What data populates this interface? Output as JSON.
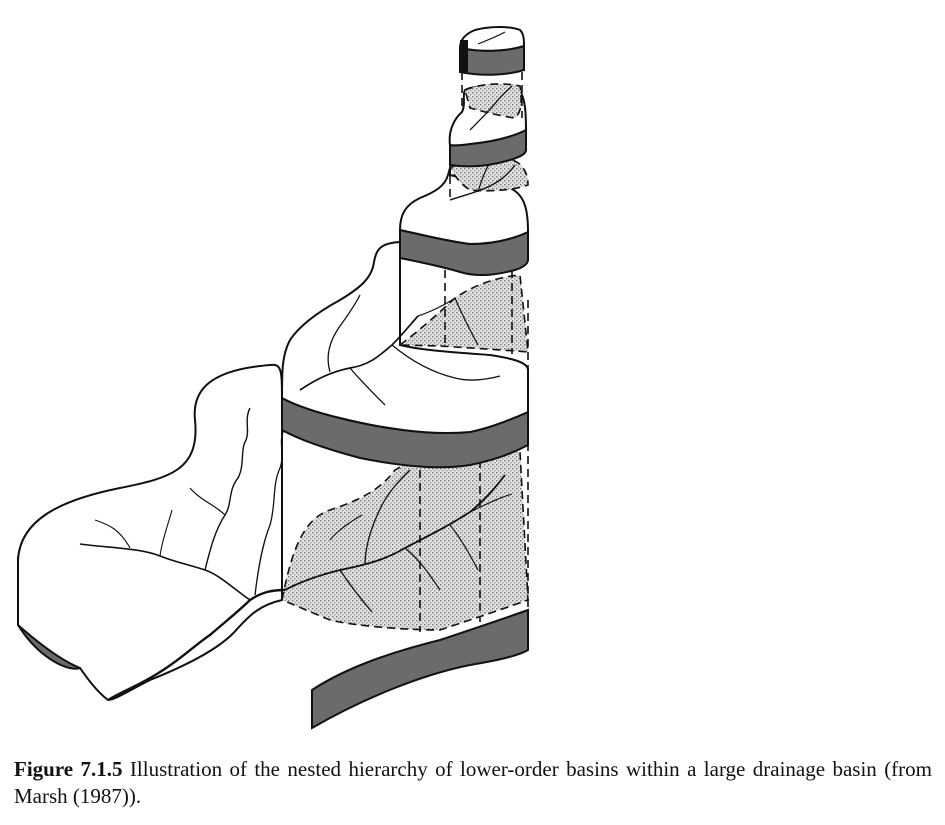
{
  "figure": {
    "label": "Figure 7.1.5",
    "caption": " Illustration of the nested hierarchy of lower-order basins within a large drainage basin (from Marsh (1987))."
  },
  "colors": {
    "slab_side": "#6b6b6b",
    "stipple": "#cfcfcf",
    "line": "#111111",
    "surface": "#ffffff"
  }
}
